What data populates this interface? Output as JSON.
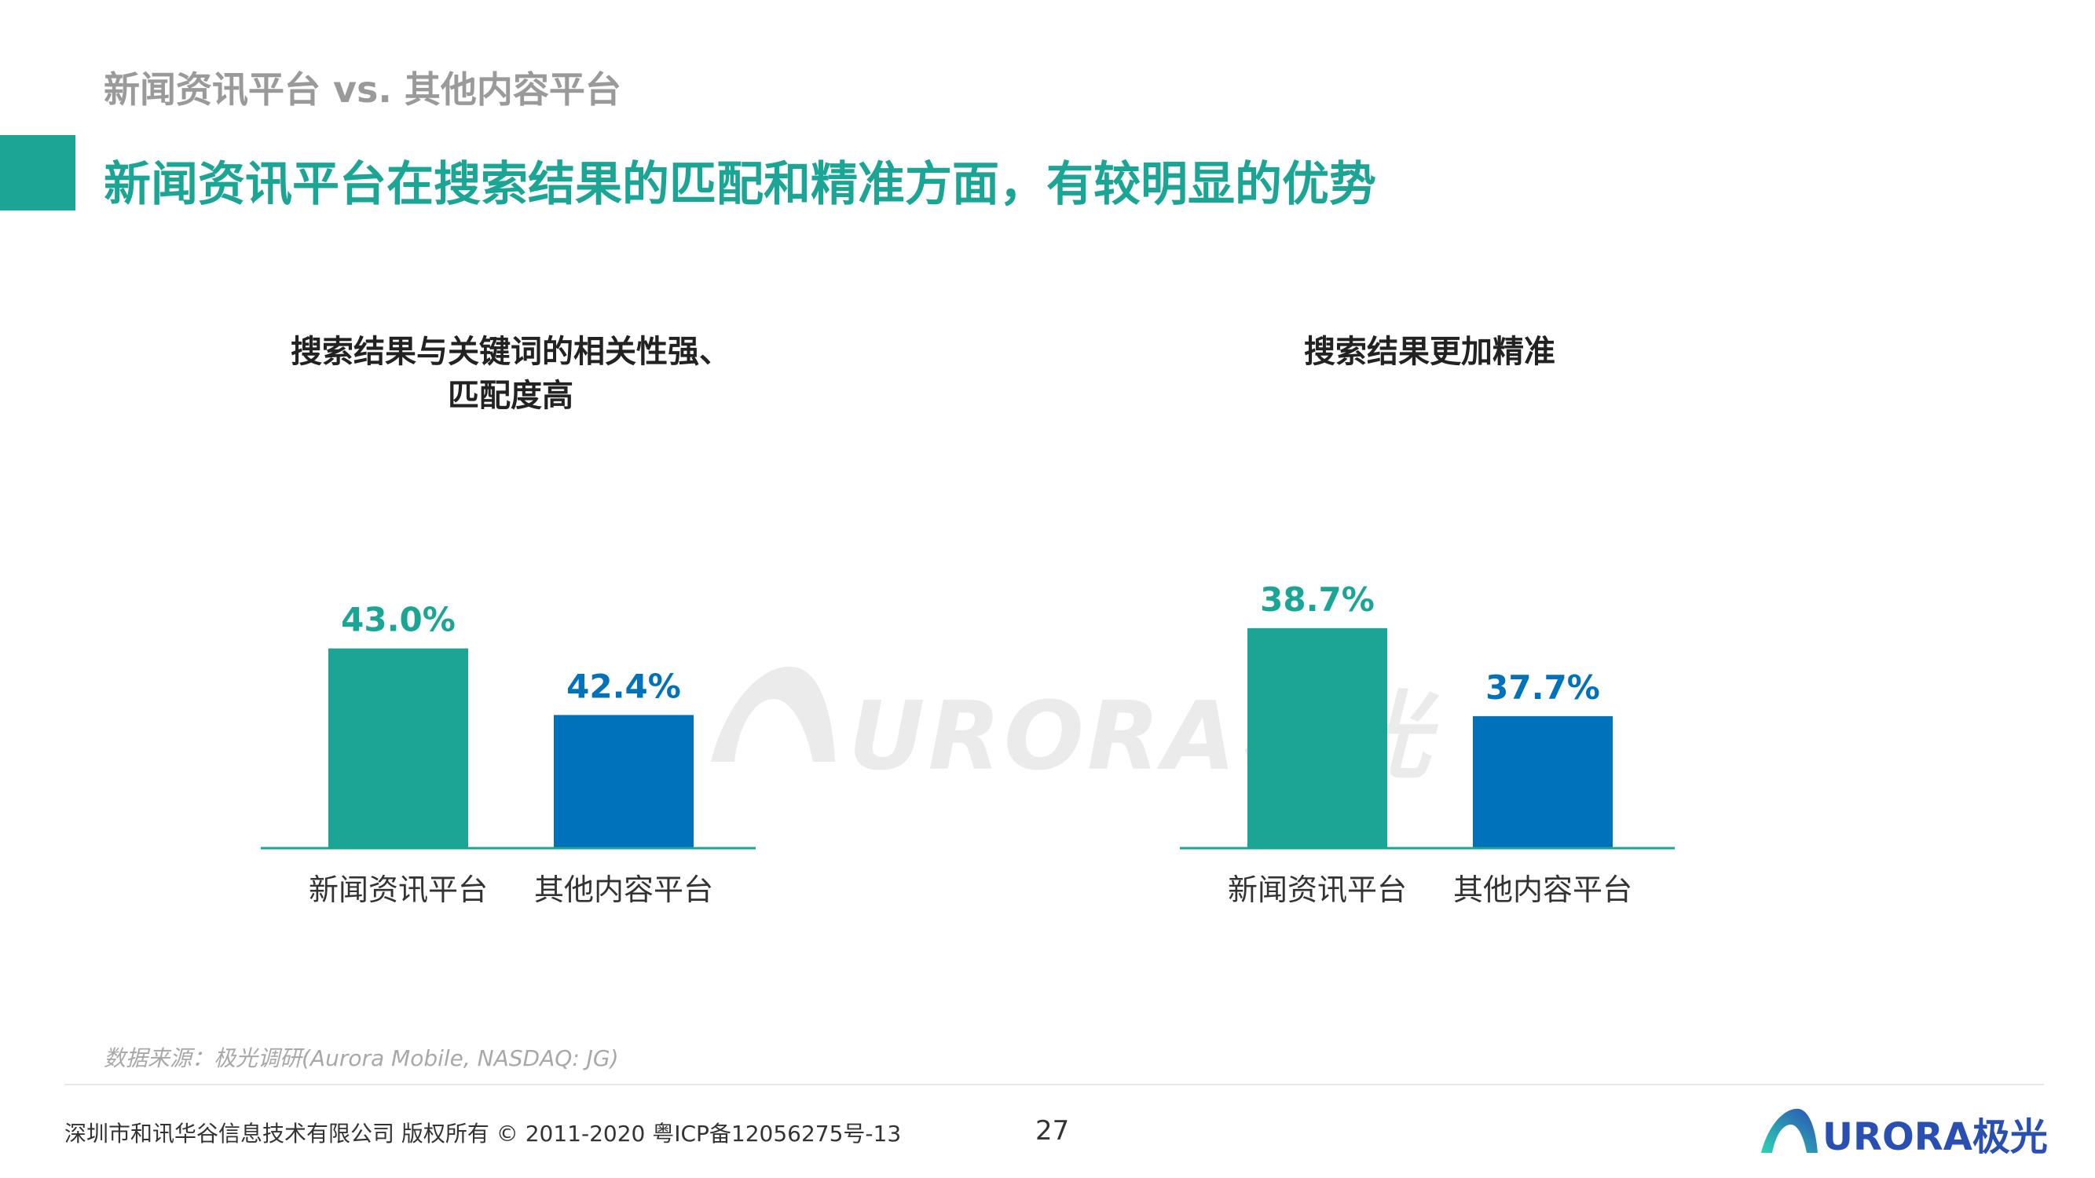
{
  "header": {
    "section_label": "新闻资讯平台 vs. 其他内容平台",
    "headline": "新闻资讯平台在搜索结果的匹配和精准方面，有较明显的优势"
  },
  "colors": {
    "accent_teal": "#1ba594",
    "accent_blue": "#0072bc",
    "axis": "#1ba594"
  },
  "chart_data": [
    {
      "type": "bar",
      "title": "搜索结果与关键词的相关性强、匹配度高",
      "title_lines": [
        "搜索结果与关键词的相关性强、",
        "匹配度高"
      ],
      "categories": [
        "新闻资讯平台",
        "其他内容平台"
      ],
      "values": [
        43.0,
        42.4
      ],
      "value_labels": [
        "43.0%",
        "42.4%"
      ],
      "bar_colors": [
        "#1ba594",
        "#0072bc"
      ],
      "ylim": [
        41.2,
        43.5
      ]
    },
    {
      "type": "bar",
      "title": "搜索结果更加精准",
      "title_lines": [
        "搜索结果更加精准"
      ],
      "categories": [
        "新闻资讯平台",
        "其他内容平台"
      ],
      "values": [
        38.7,
        37.7
      ],
      "value_labels": [
        "38.7%",
        "37.7%"
      ],
      "bar_colors": [
        "#1ba594",
        "#0072bc"
      ],
      "ylim": [
        36.2,
        39.1
      ]
    }
  ],
  "watermark": {
    "text": "URORA极光"
  },
  "footer": {
    "source": "数据来源：极光调研(Aurora Mobile, NASDAQ: JG)",
    "copyright": "深圳市和讯华谷信息技术有限公司 版权所有 © 2011-2020 粤ICP备12056275号-13",
    "page_number": "27",
    "logo_text": "URORA极光"
  }
}
